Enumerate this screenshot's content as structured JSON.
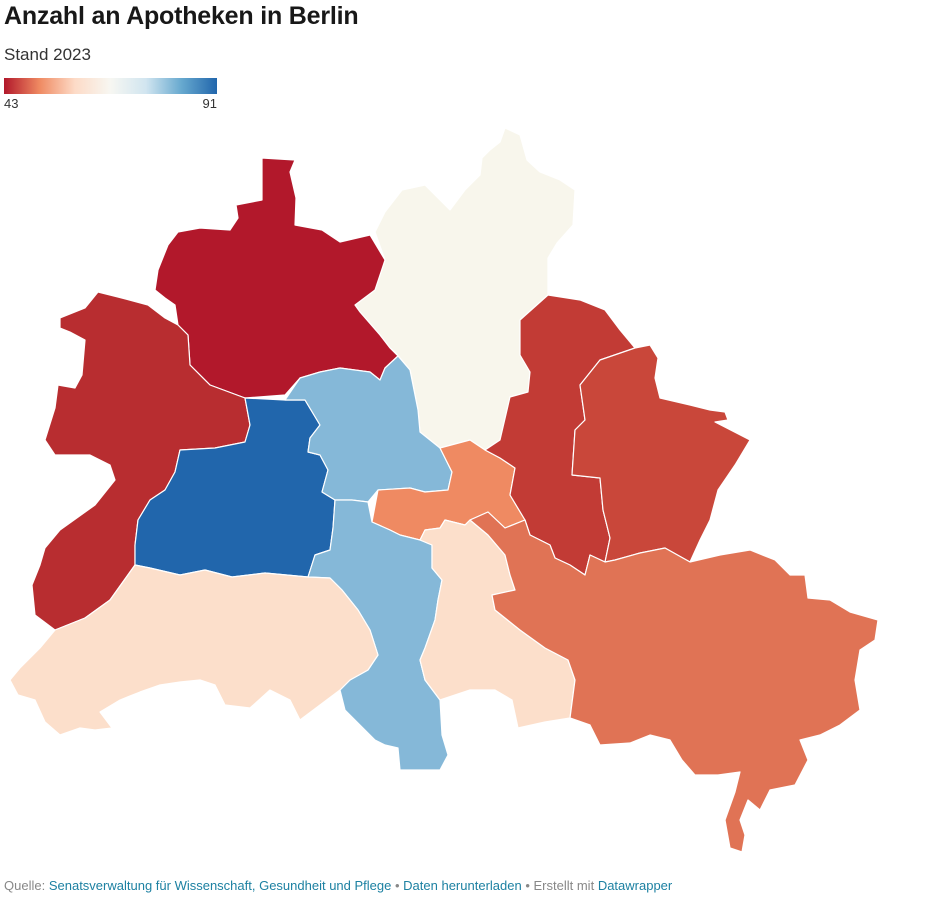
{
  "title": "Anzahl an Apotheken in Berlin",
  "subtitle": "Stand 2023",
  "legend": {
    "min": "43",
    "max": "91",
    "gradient": [
      "#b2182b",
      "#ef8a62",
      "#fddbc7",
      "#f7f7f2",
      "#d1e5f0",
      "#67a9cf",
      "#2166ac"
    ]
  },
  "districts": [
    {
      "id": "reinickendorf",
      "color": "#b2182b"
    },
    {
      "id": "pankow",
      "color": "#f8f6ec"
    },
    {
      "id": "spandau",
      "color": "#b82d30"
    },
    {
      "id": "charlottenburg-wilmersdorf",
      "color": "#2166ac"
    },
    {
      "id": "mitte",
      "color": "#85b8d8"
    },
    {
      "id": "friedrichshain-kreuzberg",
      "color": "#ef8a62"
    },
    {
      "id": "lichtenberg",
      "color": "#c23b35"
    },
    {
      "id": "marzahn-hellersdorf",
      "color": "#c9473a"
    },
    {
      "id": "steglitz-zehlendorf",
      "color": "#fcdfcb"
    },
    {
      "id": "tempelhof-schoeneberg",
      "color": "#85b8d8"
    },
    {
      "id": "neukoelln",
      "color": "#fcdfcb"
    },
    {
      "id": "treptow-koepenick",
      "color": "#e07355"
    }
  ],
  "footer": {
    "source_prefix": "Quelle:",
    "source_link": "Senatsverwaltung für Wissenschaft, Gesundheit und Pflege",
    "separator": "•",
    "download": "Daten herunterladen",
    "created_with": "Erstellt mit",
    "tool": "Datawrapper"
  }
}
